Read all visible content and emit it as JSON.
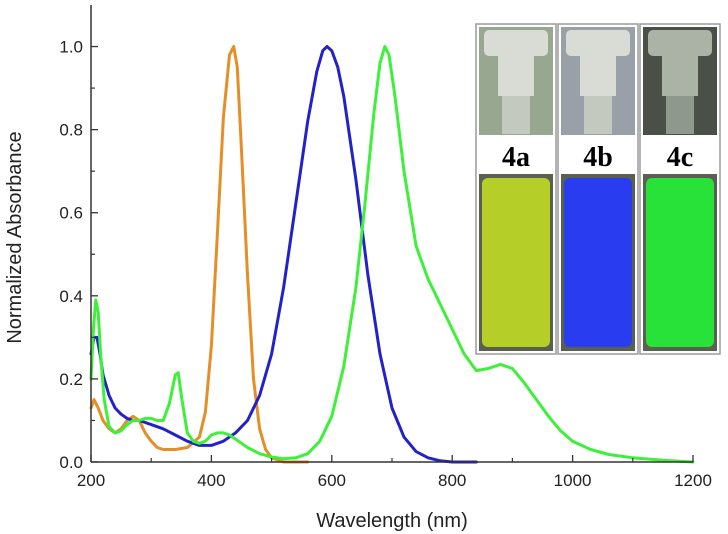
{
  "chart_data": {
    "type": "line",
    "title": "",
    "xlabel": "Wavelength (nm)",
    "ylabel": "Normalized Absorbance",
    "xlim": [
      200,
      1200
    ],
    "ylim": [
      0.0,
      1.1
    ],
    "xticks": [
      200,
      400,
      600,
      800,
      1000,
      1200
    ],
    "yticks": [
      0.0,
      0.2,
      0.4,
      0.6,
      0.8,
      1.0
    ],
    "xtick_labels": [
      "200",
      "400",
      "600",
      "800",
      "1000",
      "1200"
    ],
    "ytick_labels": [
      "0.0",
      "0.2",
      "0.4",
      "0.6",
      "0.8",
      "1.0"
    ],
    "grid": false,
    "legend": "none",
    "series": [
      {
        "color": "#e58e28",
        "points": [
          [
            200,
            0.13
          ],
          [
            205,
            0.15
          ],
          [
            212,
            0.13
          ],
          [
            220,
            0.1
          ],
          [
            230,
            0.08
          ],
          [
            240,
            0.07
          ],
          [
            250,
            0.08
          ],
          [
            260,
            0.1
          ],
          [
            270,
            0.11
          ],
          [
            280,
            0.1
          ],
          [
            290,
            0.07
          ],
          [
            300,
            0.05
          ],
          [
            310,
            0.035
          ],
          [
            320,
            0.03
          ],
          [
            340,
            0.03
          ],
          [
            360,
            0.035
          ],
          [
            380,
            0.06
          ],
          [
            390,
            0.12
          ],
          [
            400,
            0.28
          ],
          [
            410,
            0.55
          ],
          [
            420,
            0.83
          ],
          [
            430,
            0.98
          ],
          [
            437,
            1.0
          ],
          [
            443,
            0.95
          ],
          [
            450,
            0.75
          ],
          [
            460,
            0.45
          ],
          [
            470,
            0.2
          ],
          [
            480,
            0.08
          ],
          [
            490,
            0.03
          ],
          [
            500,
            0.01
          ],
          [
            520,
            0.0
          ],
          [
            560,
            0.0
          ]
        ]
      },
      {
        "color": "#2222c8",
        "points": [
          [
            200,
            0.26
          ],
          [
            205,
            0.3
          ],
          [
            210,
            0.3
          ],
          [
            215,
            0.26
          ],
          [
            220,
            0.21
          ],
          [
            230,
            0.16
          ],
          [
            240,
            0.13
          ],
          [
            250,
            0.115
          ],
          [
            260,
            0.105
          ],
          [
            270,
            0.1
          ],
          [
            280,
            0.1
          ],
          [
            290,
            0.095
          ],
          [
            300,
            0.09
          ],
          [
            320,
            0.08
          ],
          [
            340,
            0.065
          ],
          [
            360,
            0.05
          ],
          [
            380,
            0.04
          ],
          [
            400,
            0.04
          ],
          [
            420,
            0.05
          ],
          [
            440,
            0.07
          ],
          [
            460,
            0.1
          ],
          [
            480,
            0.16
          ],
          [
            500,
            0.26
          ],
          [
            520,
            0.42
          ],
          [
            540,
            0.62
          ],
          [
            560,
            0.82
          ],
          [
            575,
            0.94
          ],
          [
            585,
            0.99
          ],
          [
            592,
            1.0
          ],
          [
            600,
            0.99
          ],
          [
            610,
            0.95
          ],
          [
            620,
            0.88
          ],
          [
            640,
            0.68
          ],
          [
            660,
            0.45
          ],
          [
            680,
            0.26
          ],
          [
            700,
            0.13
          ],
          [
            720,
            0.06
          ],
          [
            740,
            0.025
          ],
          [
            760,
            0.01
          ],
          [
            780,
            0.003
          ],
          [
            800,
            0.0
          ],
          [
            840,
            0.0
          ]
        ]
      },
      {
        "color": "#3ef03a",
        "points": [
          [
            200,
            0.2
          ],
          [
            204,
            0.32
          ],
          [
            208,
            0.39
          ],
          [
            212,
            0.36
          ],
          [
            216,
            0.26
          ],
          [
            222,
            0.15
          ],
          [
            230,
            0.085
          ],
          [
            240,
            0.07
          ],
          [
            250,
            0.075
          ],
          [
            260,
            0.09
          ],
          [
            270,
            0.1
          ],
          [
            280,
            0.1
          ],
          [
            290,
            0.105
          ],
          [
            300,
            0.105
          ],
          [
            310,
            0.1
          ],
          [
            320,
            0.1
          ],
          [
            330,
            0.14
          ],
          [
            340,
            0.21
          ],
          [
            345,
            0.215
          ],
          [
            350,
            0.16
          ],
          [
            360,
            0.07
          ],
          [
            370,
            0.05
          ],
          [
            380,
            0.045
          ],
          [
            390,
            0.05
          ],
          [
            400,
            0.065
          ],
          [
            410,
            0.07
          ],
          [
            420,
            0.07
          ],
          [
            430,
            0.065
          ],
          [
            440,
            0.055
          ],
          [
            450,
            0.045
          ],
          [
            460,
            0.035
          ],
          [
            480,
            0.02
          ],
          [
            500,
            0.012
          ],
          [
            520,
            0.008
          ],
          [
            540,
            0.01
          ],
          [
            560,
            0.02
          ],
          [
            580,
            0.05
          ],
          [
            600,
            0.11
          ],
          [
            620,
            0.23
          ],
          [
            640,
            0.42
          ],
          [
            655,
            0.62
          ],
          [
            670,
            0.84
          ],
          [
            680,
            0.96
          ],
          [
            688,
            1.0
          ],
          [
            695,
            0.98
          ],
          [
            705,
            0.88
          ],
          [
            720,
            0.7
          ],
          [
            740,
            0.52
          ],
          [
            760,
            0.44
          ],
          [
            780,
            0.38
          ],
          [
            800,
            0.32
          ],
          [
            820,
            0.26
          ],
          [
            840,
            0.22
          ],
          [
            860,
            0.225
          ],
          [
            880,
            0.235
          ],
          [
            900,
            0.225
          ],
          [
            920,
            0.19
          ],
          [
            940,
            0.15
          ],
          [
            960,
            0.11
          ],
          [
            980,
            0.075
          ],
          [
            1000,
            0.05
          ],
          [
            1030,
            0.03
          ],
          [
            1060,
            0.018
          ],
          [
            1100,
            0.01
          ],
          [
            1150,
            0.004
          ],
          [
            1200,
            0.0
          ]
        ]
      }
    ],
    "inset": {
      "panels": [
        {
          "label": "4a",
          "color": "#b6cf28"
        },
        {
          "label": "4b",
          "color": "#2a3cf0"
        },
        {
          "label": "4c",
          "color": "#28e23a"
        }
      ]
    }
  }
}
